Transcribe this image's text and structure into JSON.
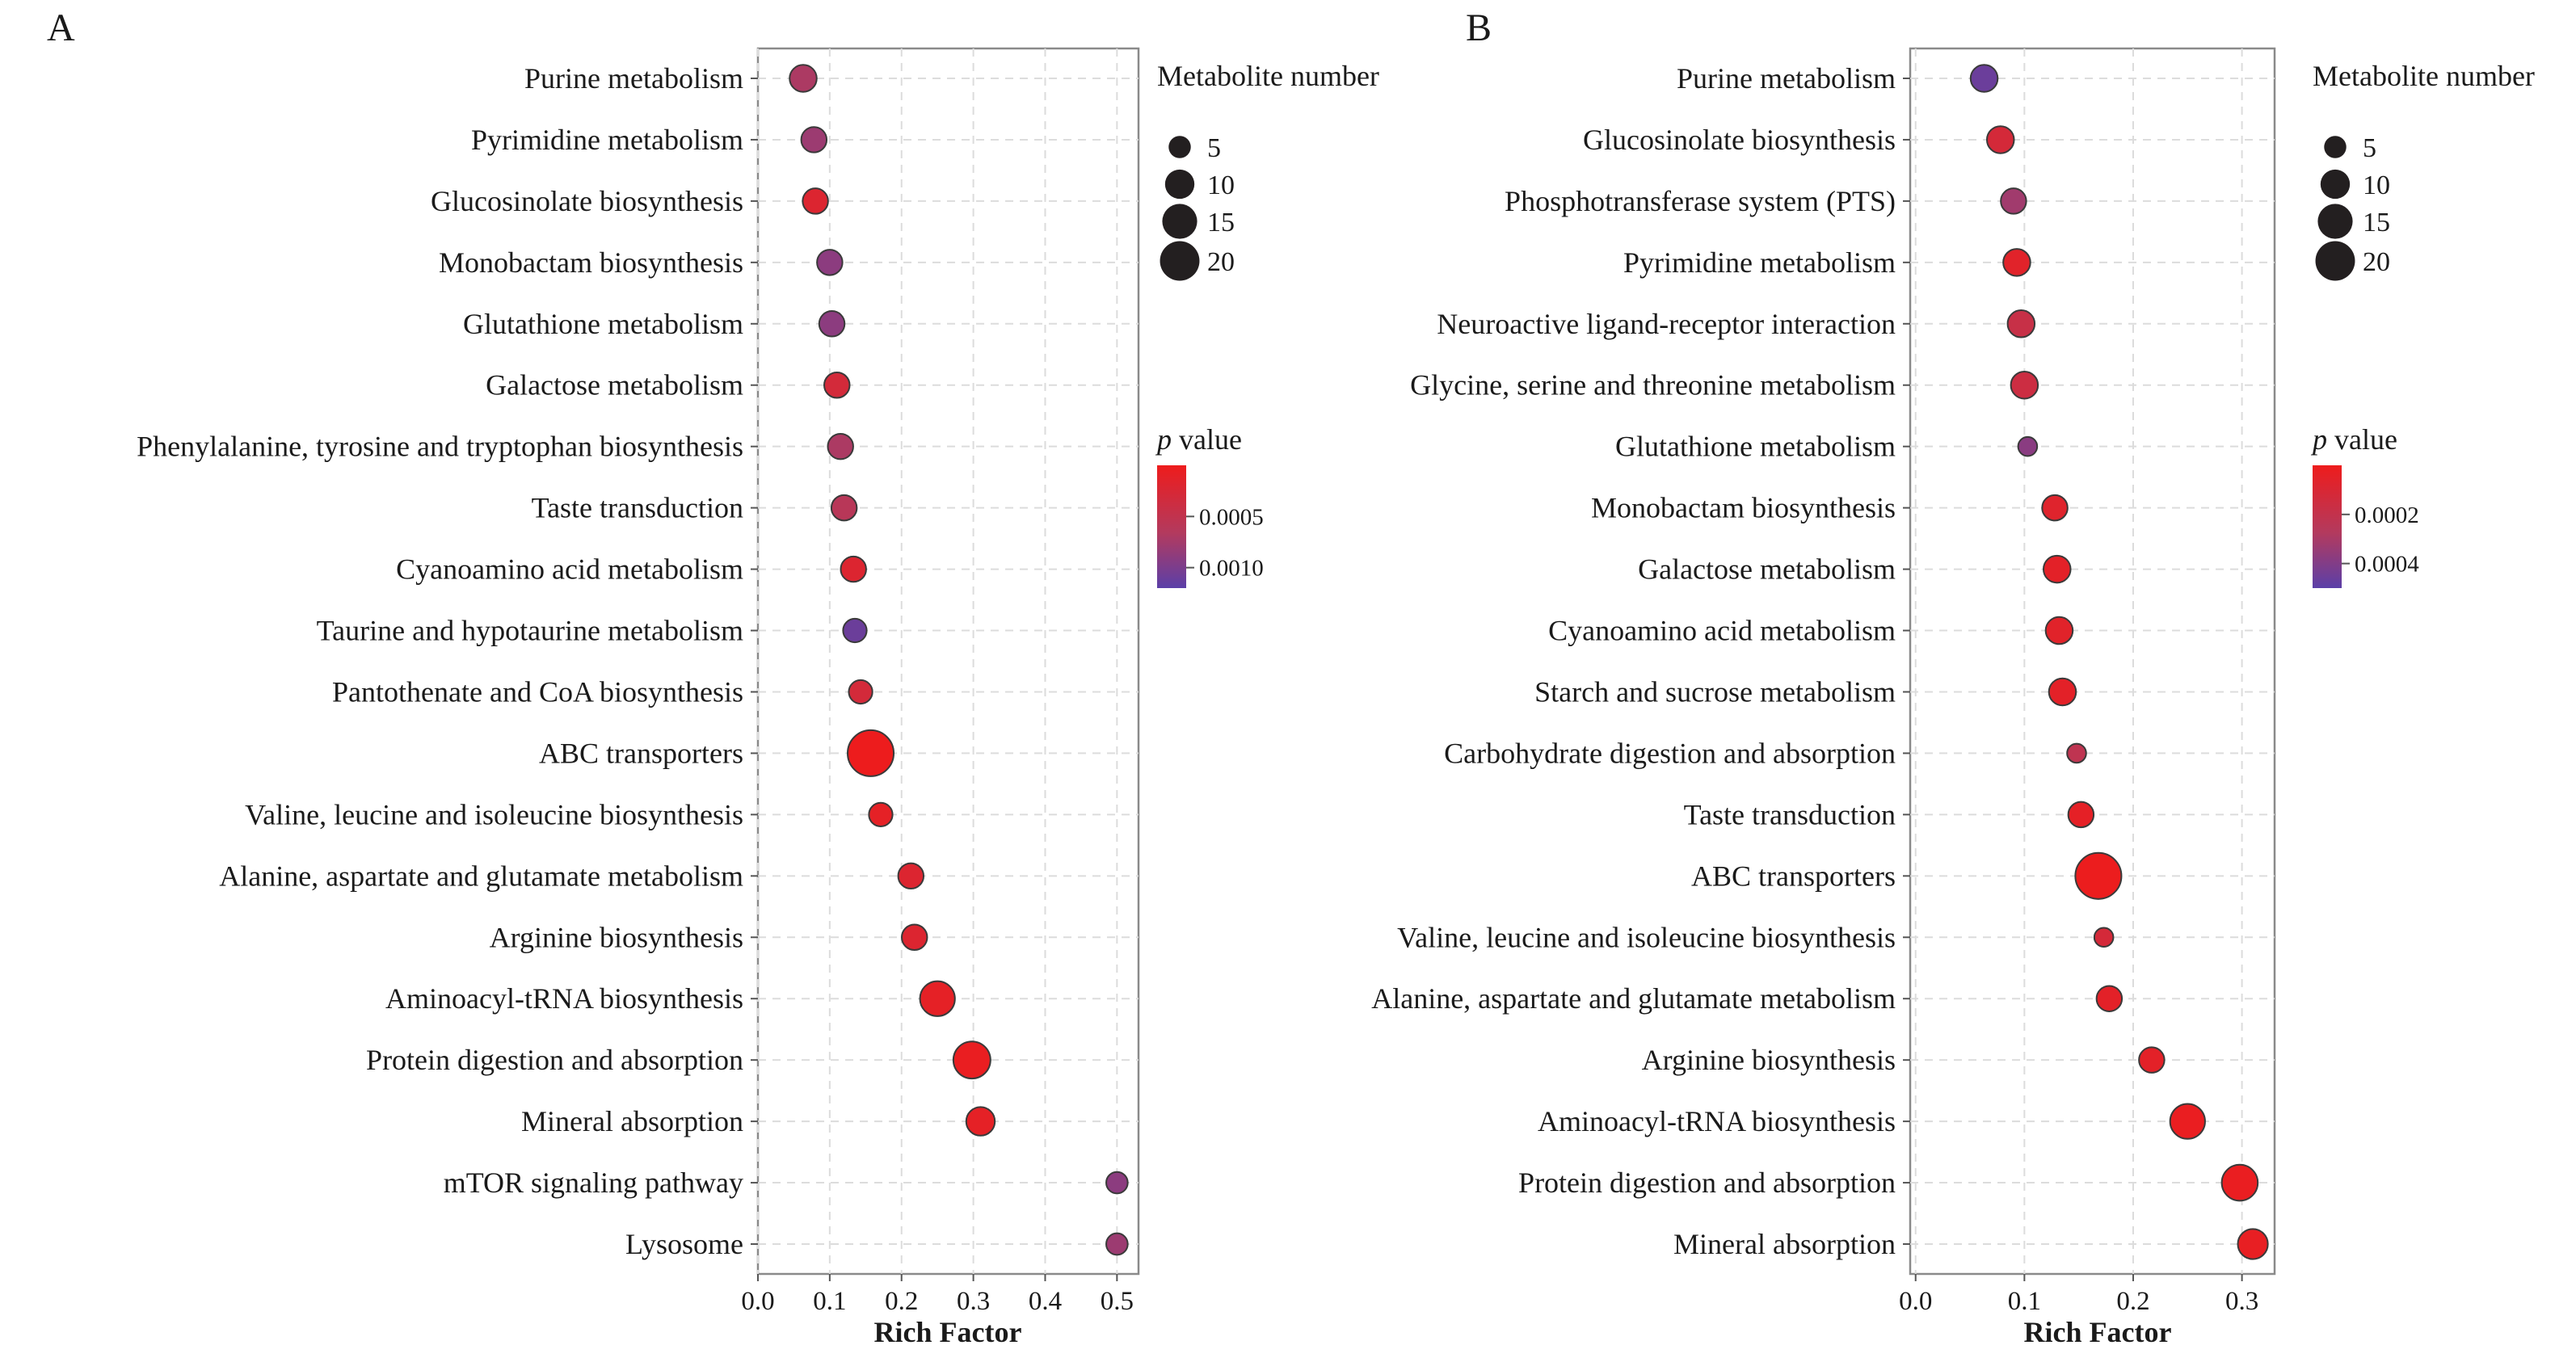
{
  "colors": {
    "high_significance": "#ee1c1c",
    "low_significance": "#5b3fa8",
    "bubble_stroke": "#3a3a3a",
    "legend_dot": "#231f20"
  },
  "chart_data": [
    {
      "panel": "A",
      "type": "scatter",
      "xlabel": "Rich Factor",
      "ylabel": "",
      "xlim": [
        0,
        0.53
      ],
      "xticks": [
        "0.0",
        "0.1",
        "0.2",
        "0.3",
        "0.4",
        "0.5"
      ],
      "size_legend_title": "Metabolite number",
      "size_legend": [
        5,
        10,
        15,
        20
      ],
      "color_legend_title_italic": "p",
      "color_legend_title_rest": " value",
      "color_legend_ticks": [
        "0.0005",
        "0.0010"
      ],
      "color_range": [
        0.0,
        0.0012
      ],
      "points": [
        {
          "pathway": "Purine metabolism",
          "rich_factor": 0.063,
          "count": 6,
          "p": 0.0007
        },
        {
          "pathway": "Pyrimidine metabolism",
          "rich_factor": 0.078,
          "count": 5,
          "p": 0.0008
        },
        {
          "pathway": "Glucosinolate biosynthesis",
          "rich_factor": 0.08,
          "count": 5,
          "p": 0.0002
        },
        {
          "pathway": "Monobactam biosynthesis",
          "rich_factor": 0.1,
          "count": 5,
          "p": 0.0009
        },
        {
          "pathway": "Glutathione metabolism",
          "rich_factor": 0.103,
          "count": 5,
          "p": 0.0009
        },
        {
          "pathway": "Galactose metabolism",
          "rich_factor": 0.11,
          "count": 5,
          "p": 0.0003
        },
        {
          "pathway": "Phenylalanine, tyrosine and tryptophan biosynthesis",
          "rich_factor": 0.115,
          "count": 5,
          "p": 0.0007
        },
        {
          "pathway": "Taste transduction",
          "rich_factor": 0.12,
          "count": 5,
          "p": 0.0006
        },
        {
          "pathway": "Cyanoamino acid metabolism",
          "rich_factor": 0.133,
          "count": 5,
          "p": 0.0002
        },
        {
          "pathway": "Taurine and hypotaurine metabolism",
          "rich_factor": 0.135,
          "count": 4,
          "p": 0.0011
        },
        {
          "pathway": "Pantothenate and CoA biosynthesis",
          "rich_factor": 0.143,
          "count": 4,
          "p": 0.0003
        },
        {
          "pathway": "ABC transporters",
          "rich_factor": 0.157,
          "count": 24,
          "p": 1e-05
        },
        {
          "pathway": "Valine, leucine and isoleucine biosynthesis",
          "rich_factor": 0.171,
          "count": 4,
          "p": 0.0001
        },
        {
          "pathway": "Alanine, aspartate and glutamate metabolism",
          "rich_factor": 0.213,
          "count": 5,
          "p": 0.0002
        },
        {
          "pathway": "Arginine biosynthesis",
          "rich_factor": 0.218,
          "count": 5,
          "p": 0.0002
        },
        {
          "pathway": "Aminoacyl-tRNA biosynthesis",
          "rich_factor": 0.25,
          "count": 12,
          "p": 0.0001
        },
        {
          "pathway": "Protein digestion and absorption",
          "rich_factor": 0.298,
          "count": 14,
          "p": 5e-05
        },
        {
          "pathway": "Mineral absorption",
          "rich_factor": 0.31,
          "count": 7,
          "p": 0.0001
        },
        {
          "pathway": "mTOR signaling pathway",
          "rich_factor": 0.5,
          "count": 3,
          "p": 0.0009
        },
        {
          "pathway": "Lysosome",
          "rich_factor": 0.5,
          "count": 3,
          "p": 0.0008
        }
      ]
    },
    {
      "panel": "B",
      "type": "scatter",
      "xlabel": "Rich Factor",
      "ylabel": "",
      "xlim": [
        -0.005,
        0.33
      ],
      "xticks": [
        "0.0",
        "0.1",
        "0.2",
        "0.3"
      ],
      "size_legend_title": "Metabolite number",
      "size_legend": [
        5,
        10,
        15,
        20
      ],
      "color_legend_title_italic": "p",
      "color_legend_title_rest": " value",
      "color_legend_ticks": [
        "0.0002",
        "0.0004"
      ],
      "color_range": [
        0.0,
        0.0005
      ],
      "points": [
        {
          "pathway": "Purine metabolism",
          "rich_factor": 0.063,
          "count": 6,
          "p": 0.00046
        },
        {
          "pathway": "Glucosinolate biosynthesis",
          "rich_factor": 0.078,
          "count": 6,
          "p": 0.00012
        },
        {
          "pathway": "Phosphotransferase system (PTS)",
          "rich_factor": 0.09,
          "count": 5,
          "p": 0.00032
        },
        {
          "pathway": "Pyrimidine metabolism",
          "rich_factor": 0.093,
          "count": 6,
          "p": 6e-05
        },
        {
          "pathway": "Neuroactive ligand-receptor interaction",
          "rich_factor": 0.097,
          "count": 6,
          "p": 0.00018
        },
        {
          "pathway": "Glycine, serine and threonine metabolism",
          "rich_factor": 0.1,
          "count": 6,
          "p": 0.00016
        },
        {
          "pathway": "Glutathione metabolism",
          "rich_factor": 0.103,
          "count": 2,
          "p": 0.00038
        },
        {
          "pathway": "Monobactam biosynthesis",
          "rich_factor": 0.128,
          "count": 5,
          "p": 7e-05
        },
        {
          "pathway": "Galactose metabolism",
          "rich_factor": 0.13,
          "count": 6,
          "p": 5e-05
        },
        {
          "pathway": "Cyanoamino acid metabolism",
          "rich_factor": 0.132,
          "count": 6,
          "p": 6e-05
        },
        {
          "pathway": "Starch and sucrose metabolism",
          "rich_factor": 0.135,
          "count": 6,
          "p": 5e-05
        },
        {
          "pathway": "Carbohydrate digestion and absorption",
          "rich_factor": 0.148,
          "count": 2,
          "p": 0.00022
        },
        {
          "pathway": "Taste transduction",
          "rich_factor": 0.152,
          "count": 5,
          "p": 4e-05
        },
        {
          "pathway": "ABC transporters",
          "rich_factor": 0.168,
          "count": 24,
          "p": 1e-05
        },
        {
          "pathway": "Valine, leucine and isoleucine biosynthesis",
          "rich_factor": 0.173,
          "count": 2,
          "p": 0.00012
        },
        {
          "pathway": "Alanine, aspartate and glutamate metabolism",
          "rich_factor": 0.178,
          "count": 5,
          "p": 5e-05
        },
        {
          "pathway": "Arginine biosynthesis",
          "rich_factor": 0.217,
          "count": 5,
          "p": 5e-05
        },
        {
          "pathway": "Aminoacyl-tRNA biosynthesis",
          "rich_factor": 0.25,
          "count": 12,
          "p": 2e-05
        },
        {
          "pathway": "Protein digestion and absorption",
          "rich_factor": 0.298,
          "count": 13,
          "p": 2e-05
        },
        {
          "pathway": "Mineral absorption",
          "rich_factor": 0.31,
          "count": 8,
          "p": 3e-05
        }
      ]
    }
  ]
}
